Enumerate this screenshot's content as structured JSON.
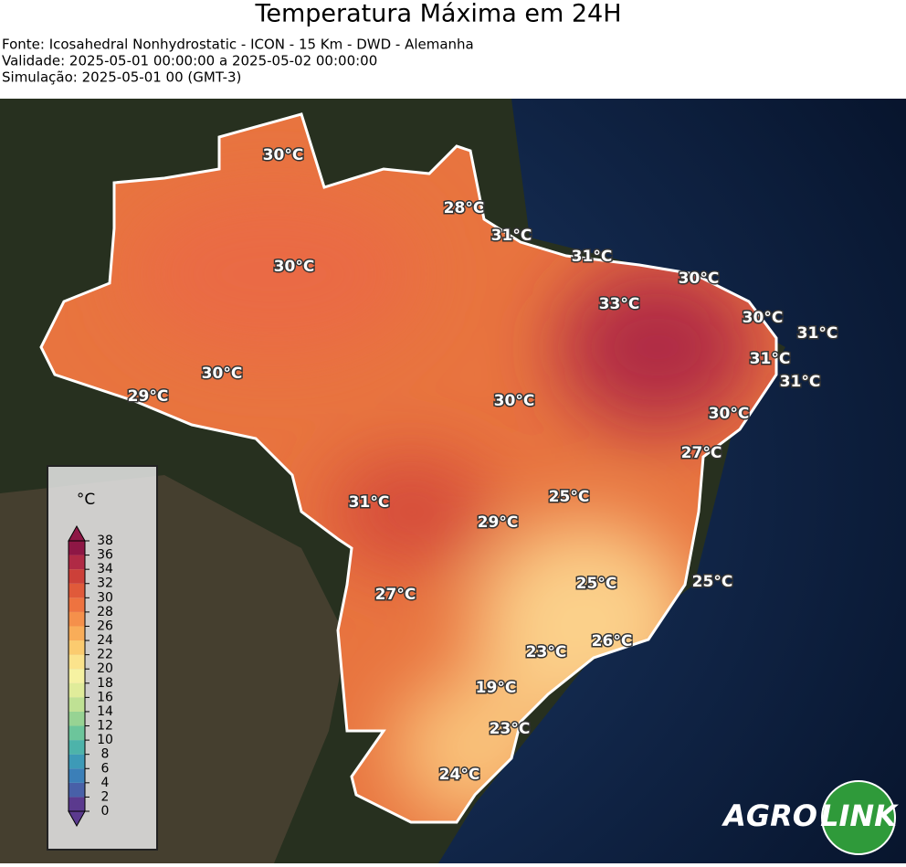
{
  "header": {
    "title": "Temperatura Máxima em 24H",
    "lines": [
      "Fonte: Icosahedral Nonhydrostatic - ICON - 15 Km - DWD - Alemanha",
      "Validade: 2025-05-01 00:00:00 a 2025-05-02 00:00:00",
      "Simulação: 2025-05-01 00 (GMT-3)"
    ]
  },
  "labels": [
    {
      "value": 30,
      "label": "30°C"
    },
    {
      "value": 28,
      "label": "28°C"
    },
    {
      "value": 31,
      "label": "31°C"
    },
    {
      "value": 31,
      "label": "31°C"
    },
    {
      "value": 30,
      "label": "30°C"
    },
    {
      "value": 33,
      "label": "33°C"
    },
    {
      "value": 30,
      "label": "30°C"
    },
    {
      "value": 30,
      "label": "30°C"
    },
    {
      "value": 31,
      "label": "31°C"
    },
    {
      "value": 31,
      "label": "31°C"
    },
    {
      "value": 31,
      "label": "31°C"
    },
    {
      "value": 30,
      "label": "30°C"
    },
    {
      "value": 29,
      "label": "29°C"
    },
    {
      "value": 30,
      "label": "30°C"
    },
    {
      "value": 30,
      "label": "30°C"
    },
    {
      "value": 27,
      "label": "27°C"
    },
    {
      "value": 25,
      "label": "25°C"
    },
    {
      "value": 31,
      "label": "31°C"
    },
    {
      "value": 29,
      "label": "29°C"
    },
    {
      "value": 25,
      "label": "25°C"
    },
    {
      "value": 25,
      "label": "25°C"
    },
    {
      "value": 27,
      "label": "27°C"
    },
    {
      "value": 26,
      "label": "26°C"
    },
    {
      "value": 23,
      "label": "23°C"
    },
    {
      "value": 19,
      "label": "19°C"
    },
    {
      "value": 23,
      "label": "23°C"
    },
    {
      "value": 24,
      "label": "24°C"
    }
  ],
  "colorbar": {
    "unit": "°C",
    "ticks": [
      0,
      2,
      4,
      6,
      8,
      10,
      12,
      14,
      16,
      18,
      20,
      22,
      24,
      26,
      28,
      30,
      32,
      34,
      36,
      38
    ],
    "colors": [
      "#5b3a8e",
      "#4860a8",
      "#3b7fb8",
      "#3d9ab7",
      "#4db3aa",
      "#6cc59b",
      "#97d393",
      "#bfe194",
      "#e0ec9a",
      "#f6f2a2",
      "#fbe38c",
      "#fbcb6f",
      "#f9ad59",
      "#f5904b",
      "#ee7340",
      "#e05a3a",
      "#cc4039",
      "#b02a45",
      "#8e1745"
    ]
  },
  "logo": {
    "left": "AGRO",
    "right": "LINK"
  }
}
